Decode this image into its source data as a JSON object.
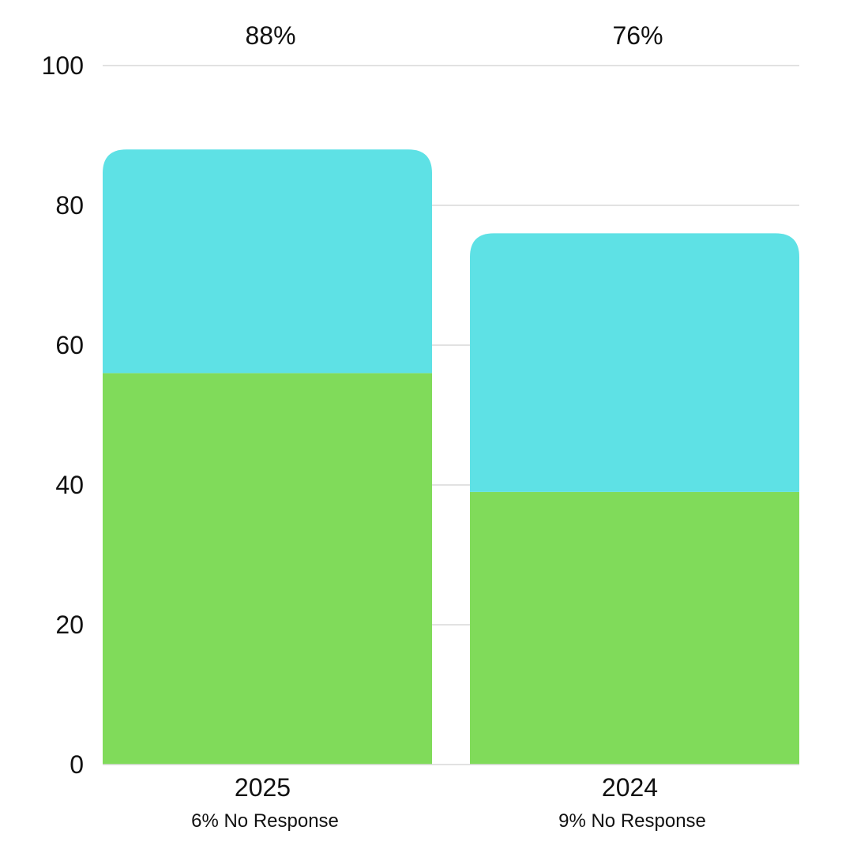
{
  "chart_data": {
    "type": "bar",
    "stacked": true,
    "categories": [
      "2025",
      "2024"
    ],
    "series": [
      {
        "values": [
          56,
          39
        ],
        "color": "#80DB5A"
      },
      {
        "values": [
          32,
          37
        ],
        "color": "#5EE1E5"
      }
    ],
    "totals": [
      88,
      76
    ],
    "total_labels": [
      "88%",
      "76%"
    ],
    "sublabels": [
      "6% No Response",
      "9% No Response"
    ],
    "ylim": [
      0,
      100
    ],
    "yticks": [
      0,
      20,
      40,
      60,
      80,
      100
    ],
    "grid": true,
    "legend": "none",
    "title": "",
    "xlabel": "",
    "ylabel": ""
  }
}
